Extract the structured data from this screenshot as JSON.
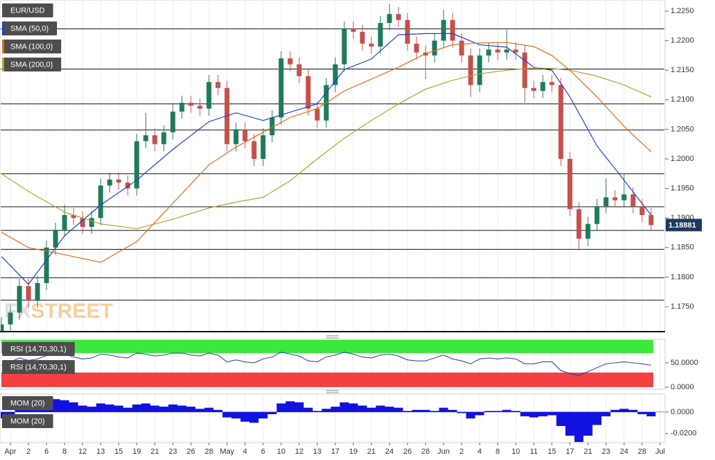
{
  "chart_data": [
    {
      "type": "candlestick",
      "title": "EUR/USD",
      "open": [
        1.1705,
        1.172,
        1.174,
        1.1785,
        1.176,
        1.179,
        1.185,
        1.188,
        1.1905,
        1.19,
        1.1885,
        1.19,
        1.1955,
        1.1965,
        1.196,
        1.195,
        1.203,
        1.204,
        1.2025,
        1.2045,
        1.208,
        1.2095,
        1.209,
        1.2085,
        1.213,
        1.212,
        1.2025,
        1.205,
        1.203,
        1.2,
        1.204,
        1.207,
        1.217,
        1.216,
        1.214,
        1.2085,
        1.2065,
        1.2125,
        1.216,
        1.222,
        1.2215,
        1.2195,
        1.219,
        1.223,
        1.2245,
        1.2235,
        1.2195,
        1.218,
        1.2175,
        1.22,
        1.2235,
        1.22,
        1.2175,
        1.2125,
        1.2175,
        1.2185,
        1.218,
        1.2185,
        1.218,
        1.212,
        1.2115,
        1.213,
        1.2125,
        1.2,
        1.1915,
        1.1865,
        1.189,
        1.192,
        1.1935,
        1.193,
        1.194,
        1.192,
        1.1905
      ],
      "high": [
        1.1732,
        1.1752,
        1.1797,
        1.1797,
        1.1802,
        1.1862,
        1.1892,
        1.1922,
        1.1917,
        1.1912,
        1.1912,
        1.1967,
        1.1977,
        1.1977,
        1.1972,
        1.2042,
        1.2078,
        1.2052,
        1.2057,
        1.2092,
        1.2107,
        1.2107,
        1.2102,
        1.2142,
        1.2142,
        1.2132,
        1.2062,
        1.2062,
        1.2042,
        1.2052,
        1.2082,
        1.2182,
        1.2182,
        1.2172,
        1.2152,
        1.2097,
        1.2137,
        1.2172,
        1.2232,
        1.2232,
        1.2227,
        1.2207,
        1.2242,
        1.2262,
        1.2257,
        1.2247,
        1.2207,
        1.2192,
        1.2212,
        1.2252,
        1.2247,
        1.2212,
        1.2187,
        1.2187,
        1.2197,
        1.2197,
        1.2218,
        1.2197,
        1.2192,
        1.2132,
        1.2142,
        1.2142,
        1.2137,
        1.2012,
        1.1927,
        1.1902,
        1.1932,
        1.1967,
        1.1947,
        1.1975,
        1.1952,
        1.1932,
        1.1917
      ],
      "low": [
        1.1693,
        1.1708,
        1.1728,
        1.1748,
        1.1748,
        1.1778,
        1.1838,
        1.1868,
        1.1888,
        1.1873,
        1.1873,
        1.1888,
        1.1943,
        1.1948,
        1.1938,
        1.1938,
        1.2018,
        1.2013,
        1.2013,
        1.2033,
        1.2068,
        1.2078,
        1.2073,
        1.2073,
        1.2108,
        1.2013,
        1.2013,
        1.2018,
        1.1988,
        1.1988,
        1.2028,
        1.2058,
        1.2148,
        1.2128,
        1.2073,
        1.2053,
        1.2053,
        1.2113,
        1.2148,
        1.2203,
        1.2183,
        1.2178,
        1.2178,
        1.2218,
        1.2223,
        1.2183,
        1.2168,
        1.2135,
        1.2163,
        1.2188,
        1.2188,
        1.2163,
        1.2105,
        1.2113,
        1.2163,
        1.2168,
        1.2168,
        1.2168,
        1.2095,
        1.2103,
        1.2103,
        1.2113,
        1.1988,
        1.1903,
        1.1847,
        1.1853,
        1.1878,
        1.1908,
        1.1918,
        1.1918,
        1.1908,
        1.1893,
        1.1878
      ],
      "close": [
        1.172,
        1.174,
        1.1785,
        1.176,
        1.179,
        1.185,
        1.188,
        1.1905,
        1.19,
        1.1885,
        1.19,
        1.1955,
        1.1965,
        1.196,
        1.195,
        1.203,
        1.204,
        1.2025,
        1.2045,
        1.208,
        1.2095,
        1.209,
        1.2085,
        1.213,
        1.212,
        1.2025,
        1.205,
        1.203,
        1.2,
        1.204,
        1.207,
        1.217,
        1.216,
        1.214,
        1.2085,
        1.2065,
        1.2125,
        1.216,
        1.222,
        1.2215,
        1.2195,
        1.219,
        1.223,
        1.2245,
        1.2235,
        1.2195,
        1.218,
        1.2175,
        1.22,
        1.2235,
        1.22,
        1.2175,
        1.2125,
        1.2175,
        1.2185,
        1.218,
        1.2185,
        1.218,
        1.212,
        1.2115,
        1.213,
        1.2125,
        1.2,
        1.1915,
        1.1865,
        1.189,
        1.192,
        1.1935,
        1.193,
        1.194,
        1.192,
        1.1905,
        1.18881
      ],
      "up_color": "#1f7a5a",
      "down_color": "#c4504c",
      "series": [
        {
          "name": "SMA (50,0)",
          "color": "#1f3fd6",
          "x": [
            0,
            3,
            7,
            11,
            15,
            19,
            23,
            26,
            29,
            32,
            35,
            38,
            41,
            44,
            47,
            50,
            53,
            56,
            59,
            61,
            63,
            66,
            69,
            72
          ],
          "values": [
            1.1835,
            1.1788,
            1.187,
            1.1922,
            1.1964,
            1.2016,
            1.2063,
            1.2078,
            1.2065,
            1.2079,
            1.2093,
            1.2151,
            1.2169,
            1.221,
            1.2212,
            1.2212,
            1.2193,
            1.2189,
            1.2155,
            1.215,
            1.2105,
            1.2022,
            1.1964,
            1.1905
          ]
        },
        {
          "name": "SMA (100,0)",
          "color": "#e06a1c",
          "x": [
            0,
            3,
            7,
            11,
            15,
            19,
            23,
            26,
            29,
            32,
            35,
            38,
            41,
            44,
            47,
            50,
            53,
            56,
            59,
            61,
            63,
            66,
            69,
            72
          ],
          "values": [
            1.1876,
            1.185,
            1.1838,
            1.1825,
            1.186,
            1.1925,
            1.199,
            1.202,
            1.2045,
            1.207,
            1.2085,
            1.2115,
            1.2135,
            1.2155,
            1.2178,
            1.2193,
            1.2196,
            1.2197,
            1.219,
            1.2175,
            1.215,
            1.2105,
            1.2055,
            1.2012
          ]
        },
        {
          "name": "SMA (200,0)",
          "color": "#b5a22a",
          "x": [
            0,
            3,
            7,
            11,
            15,
            19,
            23,
            26,
            29,
            32,
            35,
            38,
            41,
            44,
            47,
            50,
            53,
            56,
            59,
            61,
            63,
            66,
            69,
            72
          ],
          "values": [
            1.1975,
            1.1945,
            1.191,
            1.189,
            1.1882,
            1.1898,
            1.1917,
            1.1927,
            1.1935,
            1.1963,
            1.2,
            1.2035,
            1.2065,
            1.2093,
            1.2118,
            1.2133,
            1.2144,
            1.215,
            1.2154,
            1.2153,
            1.215,
            1.214,
            1.2125,
            1.2105
          ]
        }
      ],
      "levels": [
        1.222,
        1.2152,
        1.2093,
        1.2049,
        1.1975,
        1.1919,
        1.1879,
        1.1847,
        1.1799,
        1.1761
      ],
      "last_price": 1.18881,
      "watermark": [
        "FX",
        "STREET"
      ],
      "xlim": [
        -0.154,
        73.54
      ],
      "ylim": [
        1.17078,
        1.22688
      ],
      "yticks": [
        {
          "value": 1.225,
          "label": "1.2250"
        },
        {
          "value": 1.22,
          "label": "1.2200"
        },
        {
          "value": 1.215,
          "label": "1.2150"
        },
        {
          "value": 1.21,
          "label": "1.2100"
        },
        {
          "value": 1.205,
          "label": "1.2050"
        },
        {
          "value": 1.2,
          "label": "1.2000"
        },
        {
          "value": 1.195,
          "label": "1.1950"
        },
        {
          "value": 1.19,
          "label": "1.1900"
        },
        {
          "value": 1.185,
          "label": "1.1850"
        },
        {
          "value": 1.18,
          "label": "1.1800"
        },
        {
          "value": 1.175,
          "label": "1.1750"
        }
      ]
    },
    {
      "type": "line",
      "title": "RSI (14,70,30,1)",
      "series": [
        {
          "name": "RSI (14,70,30,1)",
          "color": "#2233cc",
          "values": [
            45,
            52,
            60,
            55,
            58,
            65,
            66,
            68,
            62,
            58,
            60,
            68,
            66,
            62,
            60,
            70,
            68,
            64,
            66,
            70,
            70,
            66,
            64,
            70,
            66,
            52,
            56,
            52,
            50,
            58,
            62,
            72,
            68,
            64,
            54,
            52,
            62,
            66,
            72,
            68,
            62,
            60,
            66,
            68,
            64,
            56,
            54,
            54,
            60,
            66,
            58,
            54,
            48,
            58,
            60,
            58,
            60,
            58,
            48,
            48,
            52,
            52,
            34,
            28,
            24,
            32,
            40,
            48,
            50,
            52,
            50,
            48,
            45
          ]
        }
      ],
      "bands": [
        {
          "from": 70,
          "to": 100,
          "color": "#3be83b"
        },
        {
          "from": 0,
          "to": 30,
          "color": "#f44040"
        }
      ],
      "xlim": [
        -0.154,
        73.54
      ],
      "ylim": [
        -4.4,
        98.5
      ],
      "yticks": [
        {
          "value": 50,
          "label": "50.0000"
        },
        {
          "value": 0,
          "label": "0.0000"
        }
      ]
    },
    {
      "type": "bar",
      "title": "MOM (20)",
      "series": [
        {
          "name": "MOM (20)",
          "color": "#1212e0",
          "values": [
            -0.006,
            -0.002,
            0.004,
            0.002,
            0.004,
            0.008,
            0.012,
            0.011,
            0.009,
            0.006,
            0.005,
            0.008,
            0.007,
            0.006,
            0.004,
            0.007,
            0.008,
            0.006,
            0.005,
            0.007,
            0.006,
            0.005,
            0.003,
            0.004,
            0.002,
            -0.005,
            -0.006,
            -0.009,
            -0.01,
            -0.006,
            -0.002,
            0.008,
            0.01,
            0.009,
            0.004,
            0.001,
            0.003,
            0.005,
            0.009,
            0.008,
            0.006,
            0.004,
            0.006,
            0.005,
            0.004,
            0.001,
            0.002,
            0.002,
            0.001,
            0.004,
            0.002,
            -0.001,
            -0.006,
            -0.003,
            0.001,
            0.001,
            0.002,
            0.001,
            -0.004,
            -0.005,
            -0.004,
            -0.003,
            -0.013,
            -0.022,
            -0.028,
            -0.022,
            -0.012,
            -0.004,
            0.002,
            0.003,
            0.002,
            -0.002,
            -0.004
          ]
        }
      ],
      "xlim": [
        -0.154,
        73.54
      ],
      "ylim": [
        -0.0285,
        0.0167
      ],
      "yticks": [
        {
          "value": 0,
          "label": "0.0000"
        },
        {
          "value": -0.02,
          "label": "-0.0200"
        }
      ],
      "xticks": [
        {
          "value": 1,
          "label": "Apr"
        },
        {
          "value": 3,
          "label": "2"
        },
        {
          "value": 5,
          "label": "6"
        },
        {
          "value": 7,
          "label": "8"
        },
        {
          "value": 9,
          "label": "12"
        },
        {
          "value": 11,
          "label": "13"
        },
        {
          "value": 13,
          "label": "15"
        },
        {
          "value": 15,
          "label": "19"
        },
        {
          "value": 17,
          "label": "21"
        },
        {
          "value": 19,
          "label": "23"
        },
        {
          "value": 21,
          "label": "26"
        },
        {
          "value": 23,
          "label": "28"
        },
        {
          "value": 25,
          "label": "May"
        },
        {
          "value": 27,
          "label": "4"
        },
        {
          "value": 29,
          "label": "6"
        },
        {
          "value": 31,
          "label": "10"
        },
        {
          "value": 33,
          "label": "12"
        },
        {
          "value": 35,
          "label": "13"
        },
        {
          "value": 37,
          "label": "17"
        },
        {
          "value": 39,
          "label": "19"
        },
        {
          "value": 41,
          "label": "21"
        },
        {
          "value": 43,
          "label": "24"
        },
        {
          "value": 45,
          "label": "26"
        },
        {
          "value": 47,
          "label": "28"
        },
        {
          "value": 49,
          "label": "Jun"
        },
        {
          "value": 51,
          "label": "2"
        },
        {
          "value": 53,
          "label": "4"
        },
        {
          "value": 55,
          "label": "8"
        },
        {
          "value": 57,
          "label": "10"
        },
        {
          "value": 59,
          "label": "11"
        },
        {
          "value": 61,
          "label": "15"
        },
        {
          "value": 63,
          "label": "17"
        },
        {
          "value": 65,
          "label": "21"
        },
        {
          "value": 67,
          "label": "23"
        },
        {
          "value": 69,
          "label": "24"
        },
        {
          "value": 71,
          "label": "28"
        },
        {
          "value": 73,
          "label": "Jul"
        }
      ]
    }
  ]
}
